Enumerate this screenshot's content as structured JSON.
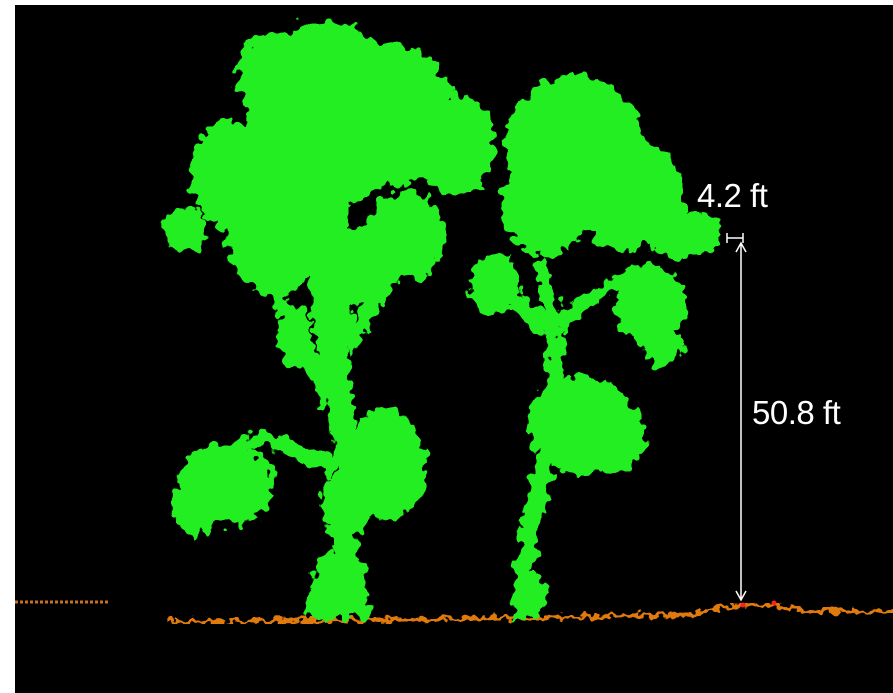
{
  "scene": {
    "background_color": "#000000",
    "vegetation_color": "#22ee22",
    "ground_color": "#e07a10"
  },
  "measurements": {
    "width_label": "4.2 ft",
    "height_label": "50.8 ft",
    "line_color": "#ffffff"
  },
  "objects": [
    "tree",
    "tree",
    "ground"
  ]
}
